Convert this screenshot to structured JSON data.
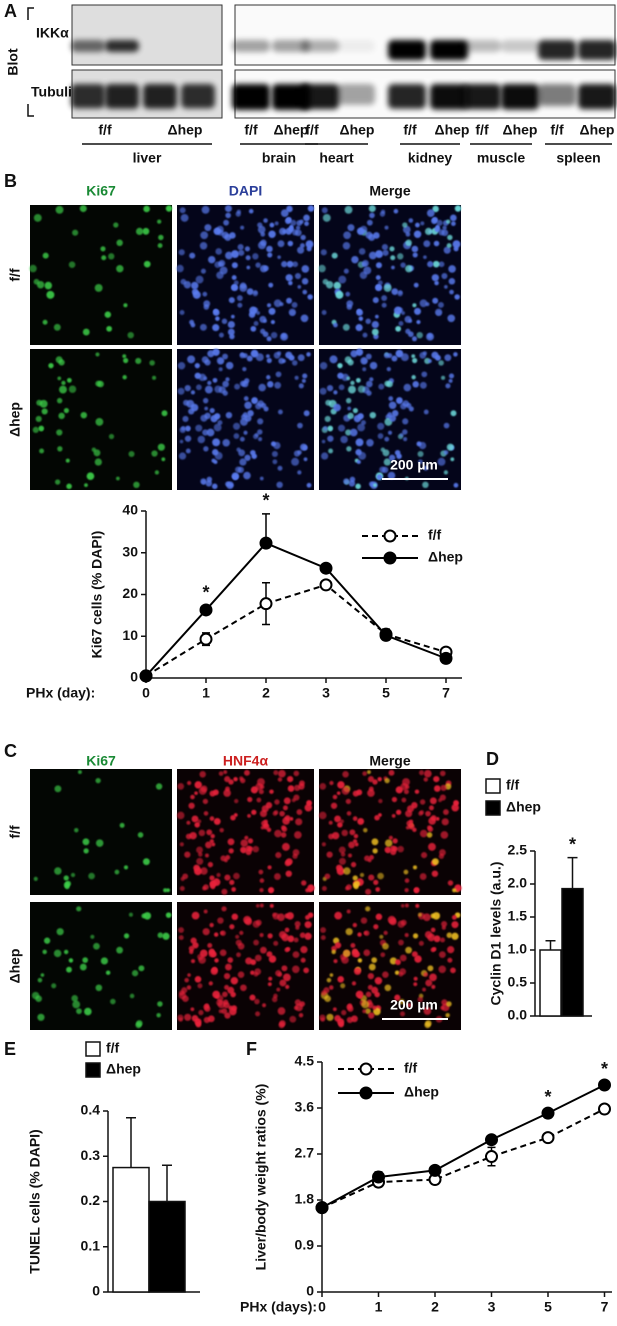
{
  "panel_labels": [
    "A",
    "B",
    "C",
    "D",
    "E",
    "F"
  ],
  "blot": {
    "axis_label": "Blot",
    "rows": [
      "IKKα",
      "Tubulin"
    ],
    "lanes": [
      {
        "tissue": "liver",
        "genotypes": [
          "f/f",
          "Δhep"
        ]
      },
      {
        "tissue": "brain",
        "genotypes": [
          "f/f",
          "Δhep"
        ]
      },
      {
        "tissue": "heart",
        "genotypes": [
          "f/f",
          "Δhep"
        ]
      },
      {
        "tissue": "kidney",
        "genotypes": [
          "f/f",
          "Δhep"
        ]
      },
      {
        "tissue": "muscle",
        "genotypes": [
          "f/f",
          "Δhep"
        ]
      },
      {
        "tissue": "spleen",
        "genotypes": [
          "f/f",
          "Δhep"
        ]
      }
    ]
  },
  "micrographs_b": {
    "columns": [
      "Ki67",
      "DAPI",
      "Merge"
    ],
    "rows": [
      "f/f",
      "Δhep"
    ],
    "scale_bar": "200 µm"
  },
  "micrographs_c": {
    "columns": [
      "Ki67",
      "HNF4α",
      "Merge"
    ],
    "rows": [
      "f/f",
      "Δhep"
    ],
    "scale_bar": "200 µm"
  },
  "chart_data": [
    {
      "type": "line",
      "y_label": "Ki67 cells (% DAPI)",
      "x_label": "PHx (day):",
      "categories": [
        "0",
        "1",
        "2",
        "3",
        "5",
        "7"
      ],
      "series": [
        {
          "name": "f/f",
          "color": "#000000",
          "line_style": "dashed",
          "marker": "open",
          "values": [
            0.5,
            9.3,
            17.8,
            22.3,
            10.5,
            6.2
          ],
          "errors": [
            0.3,
            1.5,
            5,
            0.8,
            1,
            0.8
          ]
        },
        {
          "name": "Δhep",
          "color": "#000000",
          "line_style": "solid",
          "marker": "filled",
          "values": [
            0.5,
            16.3,
            32.3,
            26.3,
            10.2,
            4.7
          ],
          "errors": [
            0.3,
            1,
            7,
            1,
            1.5,
            0.8
          ]
        }
      ],
      "ylim": [
        0,
        40
      ],
      "yticks": [
        0,
        10,
        20,
        30,
        40
      ],
      "annotations": [
        {
          "text": "*",
          "x": "1"
        },
        {
          "text": "*",
          "x": "2"
        }
      ]
    },
    {
      "type": "bar",
      "y_label": "Cyclin D1 levels (a.u.)",
      "series": [
        {
          "name": "f/f",
          "color": "#ffffff",
          "values": [
            1.0
          ],
          "errors": [
            0.14
          ]
        },
        {
          "name": "Δhep",
          "color": "#000000",
          "values": [
            1.93
          ],
          "errors": [
            0.47
          ]
        }
      ],
      "ylim": [
        0,
        2.5
      ],
      "yticks": [
        {
          "value": 0,
          "label": "0.0"
        },
        0.5,
        {
          "value": 1,
          "label": "1.0"
        },
        1.5,
        {
          "value": 2,
          "label": "2.0"
        },
        2.5
      ],
      "annotations": [
        {
          "text": "*",
          "x": "Δhep"
        }
      ]
    },
    {
      "type": "bar",
      "y_label": "TUNEL cells (% DAPI)",
      "series": [
        {
          "name": "f/f",
          "color": "#ffffff",
          "values": [
            0.275
          ],
          "errors": [
            0.11
          ]
        },
        {
          "name": "Δhep",
          "color": "#000000",
          "values": [
            0.2
          ],
          "errors": [
            0.08
          ]
        }
      ],
      "ylim": [
        0,
        0.4
      ],
      "yticks": [
        0,
        0.1,
        0.2,
        0.3,
        0.4
      ]
    },
    {
      "type": "line",
      "y_label": "Liver/body weight ratios (%)",
      "x_label": "PHx (days):",
      "categories": [
        "0",
        "1",
        "2",
        "3",
        "5",
        "7"
      ],
      "series": [
        {
          "name": "f/f",
          "color": "#000000",
          "line_style": "dashed",
          "marker": "open",
          "values": [
            1.65,
            2.15,
            2.2,
            2.65,
            3.02,
            3.58
          ],
          "errors": [
            0.05,
            0.08,
            0.06,
            0.18,
            0.06,
            0.05
          ]
        },
        {
          "name": "Δhep",
          "color": "#000000",
          "line_style": "solid",
          "marker": "filled",
          "values": [
            1.65,
            2.25,
            2.38,
            2.98,
            3.5,
            4.05
          ],
          "errors": [
            0.05,
            0.1,
            0.06,
            0.06,
            0.06,
            0.05
          ]
        }
      ],
      "ylim": [
        0,
        4.5
      ],
      "yticks": [
        0,
        0.9,
        1.8,
        2.7,
        3.6,
        4.5
      ],
      "annotations": [
        {
          "text": "*",
          "x": "5"
        },
        {
          "text": "*",
          "x": "7"
        }
      ]
    }
  ]
}
